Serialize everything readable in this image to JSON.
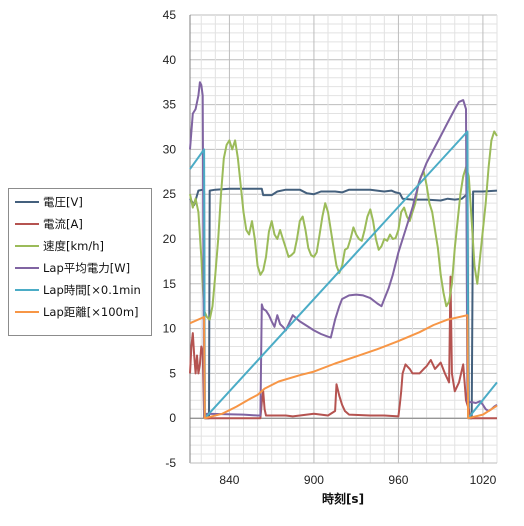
{
  "chart_data": {
    "type": "line",
    "xlabel": "時刻[s]",
    "ylabel": "",
    "xlim": [
      812,
      1030
    ],
    "ylim": [
      -5,
      45
    ],
    "y_ticks": [
      -5,
      0,
      5,
      10,
      15,
      20,
      25,
      30,
      35,
      40,
      45
    ],
    "x_ticks": [
      840,
      900,
      960,
      1020
    ],
    "grid": true,
    "legend_position": "left",
    "series": [
      {
        "name": "電圧[V]",
        "color": "#44607d",
        "points": [
          [
            812,
            24.5
          ],
          [
            815,
            23.8
          ],
          [
            818,
            25.4
          ],
          [
            821,
            25.5
          ],
          [
            822,
            25.3
          ],
          [
            822.5,
            0
          ],
          [
            824,
            0
          ],
          [
            825.5,
            0
          ],
          [
            826,
            25.4
          ],
          [
            830,
            25.5
          ],
          [
            840,
            25.6
          ],
          [
            850,
            25.6
          ],
          [
            860,
            25.6
          ],
          [
            863,
            25.6
          ],
          [
            864,
            24.9
          ],
          [
            870,
            24.9
          ],
          [
            874,
            25.3
          ],
          [
            880,
            25.5
          ],
          [
            890,
            25.5
          ],
          [
            895,
            25.1
          ],
          [
            900,
            25.0
          ],
          [
            905,
            25.3
          ],
          [
            910,
            25.3
          ],
          [
            915,
            25.3
          ],
          [
            920,
            25.2
          ],
          [
            925,
            25.5
          ],
          [
            930,
            25.5
          ],
          [
            940,
            25.5
          ],
          [
            950,
            25.3
          ],
          [
            955,
            25.4
          ],
          [
            958,
            25.2
          ],
          [
            961,
            25.1
          ],
          [
            963,
            24.5
          ],
          [
            970,
            24.4
          ],
          [
            980,
            24.4
          ],
          [
            990,
            24.3
          ],
          [
            995,
            24.5
          ],
          [
            1000,
            24.4
          ],
          [
            1005,
            24.5
          ],
          [
            1008,
            24.9
          ],
          [
            1009,
            25.3
          ],
          [
            1010,
            0
          ],
          [
            1012,
            0
          ],
          [
            1013,
            25.3
          ],
          [
            1020,
            25.3
          ],
          [
            1030,
            25.4
          ]
        ]
      },
      {
        "name": "電流[A]",
        "color": "#b55350",
        "points": [
          [
            812,
            5
          ],
          [
            813,
            8
          ],
          [
            814,
            9.5
          ],
          [
            815,
            7
          ],
          [
            816,
            5
          ],
          [
            817,
            7
          ],
          [
            818,
            5
          ],
          [
            819,
            6
          ],
          [
            820,
            8
          ],
          [
            821,
            7.5
          ],
          [
            822,
            0.1
          ],
          [
            823,
            0
          ],
          [
            860,
            0
          ],
          [
            862,
            0
          ],
          [
            863,
            1.8
          ],
          [
            864,
            3
          ],
          [
            865,
            1
          ],
          [
            866,
            0.3
          ],
          [
            880,
            0.3
          ],
          [
            885,
            0.2
          ],
          [
            890,
            0.3
          ],
          [
            900,
            0.5
          ],
          [
            905,
            0.4
          ],
          [
            910,
            0.3
          ],
          [
            915,
            0.8
          ],
          [
            916,
            3.8
          ],
          [
            918,
            2.5
          ],
          [
            920,
            1.5
          ],
          [
            922,
            0.8
          ],
          [
            925,
            0.4
          ],
          [
            940,
            0.3
          ],
          [
            950,
            0.3
          ],
          [
            960,
            0.2
          ],
          [
            961,
            1.5
          ],
          [
            962,
            3
          ],
          [
            963,
            5
          ],
          [
            965,
            6
          ],
          [
            968,
            5.5
          ],
          [
            970,
            5
          ],
          [
            975,
            5
          ],
          [
            978,
            5.5
          ],
          [
            980,
            5.8
          ],
          [
            983,
            6.5
          ],
          [
            986,
            5.5
          ],
          [
            990,
            6.2
          ],
          [
            993,
            5
          ],
          [
            996,
            4
          ],
          [
            997,
            15.8
          ],
          [
            998,
            5
          ],
          [
            1000,
            3
          ],
          [
            1003,
            4
          ],
          [
            1006,
            6
          ],
          [
            1008,
            2
          ],
          [
            1010,
            1
          ],
          [
            1011,
            0
          ],
          [
            1030,
            0
          ]
        ]
      },
      {
        "name": "速度[km/h]",
        "color": "#9bbb59",
        "points": [
          [
            812,
            25
          ],
          [
            814,
            23.5
          ],
          [
            816,
            24.5
          ],
          [
            818,
            23
          ],
          [
            820,
            18
          ],
          [
            822,
            12
          ],
          [
            824,
            11.3
          ],
          [
            826,
            11
          ],
          [
            828,
            12.5
          ],
          [
            830,
            16
          ],
          [
            832,
            20
          ],
          [
            834,
            25
          ],
          [
            836,
            29
          ],
          [
            838,
            30.5
          ],
          [
            840,
            31
          ],
          [
            842,
            30
          ],
          [
            844,
            31
          ],
          [
            846,
            29
          ],
          [
            848,
            26
          ],
          [
            850,
            23
          ],
          [
            852,
            21
          ],
          [
            854,
            20.5
          ],
          [
            856,
            22
          ],
          [
            858,
            20
          ],
          [
            860,
            17
          ],
          [
            862,
            16
          ],
          [
            864,
            16.5
          ],
          [
            866,
            18
          ],
          [
            868,
            20.8
          ],
          [
            870,
            22
          ],
          [
            872,
            20.5
          ],
          [
            874,
            20
          ],
          [
            876,
            21
          ],
          [
            878,
            20
          ],
          [
            880,
            19
          ],
          [
            882,
            18
          ],
          [
            884,
            18.2
          ],
          [
            886,
            18.5
          ],
          [
            888,
            20
          ],
          [
            890,
            22
          ],
          [
            892,
            22.5
          ],
          [
            894,
            21
          ],
          [
            896,
            19
          ],
          [
            898,
            18.2
          ],
          [
            900,
            18
          ],
          [
            902,
            18.5
          ],
          [
            904,
            20.5
          ],
          [
            906,
            22.5
          ],
          [
            908,
            24
          ],
          [
            910,
            23
          ],
          [
            912,
            21
          ],
          [
            914,
            19
          ],
          [
            916,
            17
          ],
          [
            918,
            16.2
          ],
          [
            920,
            17
          ],
          [
            922,
            18.8
          ],
          [
            924,
            19
          ],
          [
            926,
            20
          ],
          [
            928,
            21.3
          ],
          [
            930,
            20.5
          ],
          [
            932,
            20
          ],
          [
            934,
            19.8
          ],
          [
            936,
            21
          ],
          [
            938,
            22.5
          ],
          [
            940,
            23.3
          ],
          [
            942,
            22
          ],
          [
            944,
            20
          ],
          [
            946,
            18.8
          ],
          [
            948,
            19.2
          ],
          [
            950,
            20
          ],
          [
            952,
            19.8
          ],
          [
            954,
            20.5
          ],
          [
            956,
            20
          ],
          [
            958,
            20.1
          ],
          [
            960,
            21
          ],
          [
            962,
            23
          ],
          [
            964,
            23.5
          ],
          [
            966,
            22.5
          ],
          [
            968,
            22
          ],
          [
            970,
            23
          ],
          [
            972,
            24
          ],
          [
            974,
            26
          ],
          [
            976,
            27
          ],
          [
            978,
            27.5
          ],
          [
            980,
            26
          ],
          [
            982,
            24
          ],
          [
            984,
            23
          ],
          [
            986,
            21
          ],
          [
            988,
            19
          ],
          [
            990,
            16
          ],
          [
            992,
            14
          ],
          [
            994,
            12.5
          ],
          [
            996,
            13
          ],
          [
            998,
            15
          ],
          [
            1000,
            19
          ],
          [
            1002,
            22
          ],
          [
            1004,
            25
          ],
          [
            1006,
            27
          ],
          [
            1008,
            28
          ],
          [
            1010,
            27
          ],
          [
            1012,
            22
          ],
          [
            1014,
            17
          ],
          [
            1016,
            15
          ],
          [
            1018,
            18
          ],
          [
            1020,
            21
          ],
          [
            1022,
            24
          ],
          [
            1024,
            28
          ],
          [
            1026,
            31
          ],
          [
            1028,
            32
          ],
          [
            1030,
            31.5
          ]
        ]
      },
      {
        "name": "Lap平均電力[W]",
        "color": "#8064a2",
        "points": [
          [
            812,
            30
          ],
          [
            813,
            32
          ],
          [
            814,
            34
          ],
          [
            816,
            34.5
          ],
          [
            818,
            36
          ],
          [
            819,
            37.5
          ],
          [
            820,
            37.2
          ],
          [
            821,
            36
          ],
          [
            822,
            0.3
          ],
          [
            824,
            0.5
          ],
          [
            850,
            0.4
          ],
          [
            860,
            0.3
          ],
          [
            862,
            0.3
          ],
          [
            863,
            12.7
          ],
          [
            864,
            12.2
          ],
          [
            866,
            12
          ],
          [
            868,
            11.5
          ],
          [
            870,
            10.8
          ],
          [
            872,
            10.2
          ],
          [
            874,
            11.5
          ],
          [
            876,
            10.5
          ],
          [
            878,
            10.2
          ],
          [
            880,
            9.8
          ],
          [
            885,
            11.5
          ],
          [
            890,
            10.8
          ],
          [
            895,
            10.3
          ],
          [
            900,
            9.8
          ],
          [
            905,
            9.4
          ],
          [
            910,
            9.1
          ],
          [
            912,
            9.0
          ],
          [
            915,
            11
          ],
          [
            918,
            12.5
          ],
          [
            920,
            13.3
          ],
          [
            925,
            13.7
          ],
          [
            930,
            13.8
          ],
          [
            935,
            13.7
          ],
          [
            940,
            13.4
          ],
          [
            945,
            12.8
          ],
          [
            948,
            12.5
          ],
          [
            950,
            13.3
          ],
          [
            953,
            14.5
          ],
          [
            956,
            16
          ],
          [
            960,
            18.5
          ],
          [
            965,
            21
          ],
          [
            970,
            23.5
          ],
          [
            975,
            26.5
          ],
          [
            980,
            28.5
          ],
          [
            985,
            30
          ],
          [
            990,
            31.5
          ],
          [
            995,
            33
          ],
          [
            1000,
            34.5
          ],
          [
            1003,
            35.3
          ],
          [
            1006,
            35.5
          ],
          [
            1008,
            34.5
          ],
          [
            1009,
            1.8
          ],
          [
            1012,
            1.8
          ],
          [
            1015,
            1.7
          ],
          [
            1018,
            1.9
          ],
          [
            1020,
            1.5
          ],
          [
            1022,
            1.0
          ],
          [
            1024,
            0.8
          ],
          [
            1026,
            1.0
          ],
          [
            1028,
            1.3
          ],
          [
            1030,
            1.5
          ]
        ]
      },
      {
        "name": "Lap時間[×0.1min",
        "color": "#4bacc6",
        "points": [
          [
            812,
            27.8
          ],
          [
            822,
            30
          ],
          [
            822.5,
            0
          ],
          [
            1009,
            32
          ],
          [
            1009.5,
            0
          ],
          [
            1030,
            4
          ]
        ]
      },
      {
        "name": "Lap距離[×100m]",
        "color": "#f79646",
        "points": [
          [
            812,
            10.6
          ],
          [
            822,
            11.3
          ],
          [
            822.5,
            0
          ],
          [
            835,
            0.5
          ],
          [
            845,
            1.3
          ],
          [
            855,
            2.2
          ],
          [
            860,
            2.6
          ],
          [
            865,
            3.3
          ],
          [
            875,
            4.1
          ],
          [
            890,
            4.8
          ],
          [
            900,
            5.2
          ],
          [
            915,
            6.1
          ],
          [
            930,
            6.9
          ],
          [
            945,
            7.7
          ],
          [
            960,
            8.6
          ],
          [
            975,
            9.6
          ],
          [
            985,
            10.4
          ],
          [
            995,
            11.0
          ],
          [
            1009,
            11.5
          ],
          [
            1009.5,
            0
          ],
          [
            1020,
            0.4
          ],
          [
            1030,
            1.4
          ]
        ]
      }
    ]
  }
}
